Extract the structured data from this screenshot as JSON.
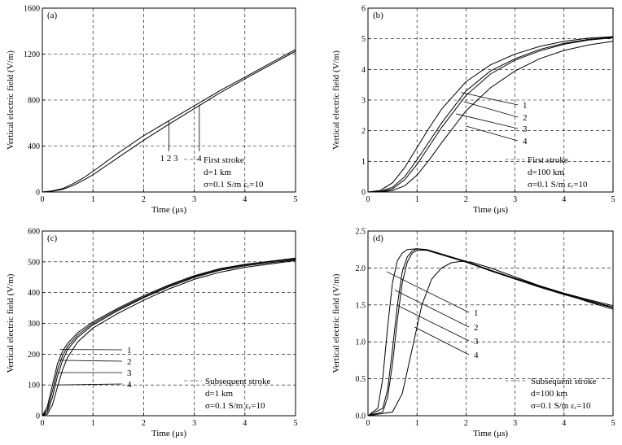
{
  "chart_data": [
    {
      "type": "line",
      "panel_label": "(a)",
      "xlabel": "Time (μs)",
      "ylabel": "Vertical electric field (V/m)",
      "xlim": [
        0,
        5
      ],
      "ylim": [
        0,
        1600
      ],
      "xticks": [
        "0",
        "1",
        "2",
        "3",
        "4",
        "5"
      ],
      "yticks": [
        "0",
        "400",
        "800",
        "1200",
        "1600"
      ],
      "grid": true,
      "annotation_lines": [
        "First stroke",
        "d=1 km",
        "σ=0.1 S/m εᵣ=10"
      ],
      "curve_labels": [
        "1 2 3",
        "4"
      ],
      "series": [
        {
          "x": [
            0,
            0.2,
            0.4,
            0.6,
            0.8,
            1,
            1.5,
            2,
            2.5,
            3,
            3.5,
            4,
            4.5,
            5
          ],
          "values": [
            0,
            10,
            30,
            70,
            120,
            180,
            340,
            490,
            620,
            750,
            880,
            1000,
            1120,
            1240
          ]
        },
        {
          "x": [
            0,
            0.2,
            0.4,
            0.6,
            0.8,
            1,
            1.5,
            2,
            2.5,
            3,
            3.5,
            4,
            4.5,
            5
          ],
          "values": [
            0,
            7,
            22,
            55,
            100,
            150,
            300,
            450,
            590,
            725,
            860,
            985,
            1105,
            1225
          ]
        }
      ]
    },
    {
      "type": "line",
      "panel_label": "(b)",
      "xlabel": "Time (μs)",
      "ylabel": "Vertical electric field (V/m)",
      "xlim": [
        0,
        5
      ],
      "ylim": [
        0,
        6
      ],
      "xticks": [
        "0",
        "1",
        "2",
        "3",
        "4",
        "5"
      ],
      "yticks": [
        "0",
        "1",
        "2",
        "3",
        "4",
        "5",
        "6"
      ],
      "grid": true,
      "annotation_lines": [
        "First stroke",
        "d=100 km",
        "σ=0.1 S/m εᵣ=10"
      ],
      "curve_labels": [
        "1",
        "2",
        "3",
        "4"
      ],
      "series": [
        {
          "x": [
            0,
            0.25,
            0.5,
            0.75,
            1,
            1.25,
            1.5,
            2,
            2.5,
            3,
            3.5,
            4,
            4.5,
            5
          ],
          "values": [
            0,
            0.05,
            0.3,
            0.8,
            1.45,
            2.1,
            2.7,
            3.6,
            4.15,
            4.5,
            4.75,
            4.92,
            5.02,
            5.07
          ]
        },
        {
          "x": [
            0,
            0.25,
            0.5,
            0.75,
            1,
            1.25,
            1.5,
            2,
            2.5,
            3,
            3.5,
            4,
            4.5,
            5
          ],
          "values": [
            0,
            0.02,
            0.15,
            0.5,
            1.05,
            1.65,
            2.25,
            3.3,
            3.95,
            4.35,
            4.65,
            4.85,
            4.98,
            5.05
          ]
        },
        {
          "x": [
            0,
            0.25,
            0.5,
            0.75,
            1,
            1.25,
            1.5,
            2,
            2.5,
            3,
            3.5,
            4,
            4.5,
            5
          ],
          "values": [
            0,
            0.01,
            0.1,
            0.4,
            0.9,
            1.5,
            2.1,
            3.15,
            3.85,
            4.3,
            4.6,
            4.82,
            4.96,
            5.03
          ]
        },
        {
          "x": [
            0,
            0.25,
            0.5,
            0.75,
            1,
            1.25,
            1.5,
            2,
            2.5,
            3,
            3.5,
            4,
            4.5,
            5
          ],
          "values": [
            0,
            0.0,
            0.05,
            0.2,
            0.55,
            1.05,
            1.6,
            2.65,
            3.4,
            3.95,
            4.35,
            4.62,
            4.8,
            4.92
          ]
        }
      ]
    },
    {
      "type": "line",
      "panel_label": "(c)",
      "xlabel": "Time (μs)",
      "ylabel": "Vertical electric field (V/m)",
      "xlim": [
        0,
        5
      ],
      "ylim": [
        0,
        600
      ],
      "xticks": [
        "0",
        "1",
        "2",
        "3",
        "4",
        "5"
      ],
      "yticks": [
        "0",
        "100",
        "200",
        "300",
        "400",
        "500",
        "600"
      ],
      "grid": true,
      "annotation_lines": [
        "Subsequent stroke",
        "d=1 km",
        "σ=0.1 S/m εᵣ=10"
      ],
      "curve_labels": [
        "1",
        "2",
        "3",
        "4"
      ],
      "series": [
        {
          "x": [
            0,
            0.1,
            0.2,
            0.3,
            0.4,
            0.5,
            0.7,
            1,
            1.5,
            2,
            2.5,
            3,
            3.5,
            4,
            4.5,
            5
          ],
          "values": [
            0,
            30,
            100,
            170,
            210,
            235,
            270,
            305,
            350,
            390,
            425,
            455,
            478,
            492,
            502,
            512
          ]
        },
        {
          "x": [
            0,
            0.1,
            0.2,
            0.3,
            0.4,
            0.5,
            0.7,
            1,
            1.5,
            2,
            2.5,
            3,
            3.5,
            4,
            4.5,
            5
          ],
          "values": [
            0,
            20,
            80,
            150,
            195,
            225,
            262,
            300,
            346,
            386,
            422,
            452,
            475,
            490,
            500,
            510
          ]
        },
        {
          "x": [
            0,
            0.1,
            0.2,
            0.3,
            0.4,
            0.5,
            0.7,
            1,
            1.5,
            2,
            2.5,
            3,
            3.5,
            4,
            4.5,
            5
          ],
          "values": [
            0,
            12,
            60,
            130,
            180,
            215,
            255,
            295,
            342,
            383,
            419,
            449,
            472,
            487,
            497,
            507
          ]
        },
        {
          "x": [
            0,
            0.1,
            0.2,
            0.3,
            0.4,
            0.5,
            0.7,
            1,
            1.5,
            2,
            2.5,
            3,
            3.5,
            4,
            4.5,
            5
          ],
          "values": [
            0,
            5,
            35,
            95,
            150,
            190,
            240,
            285,
            333,
            375,
            412,
            443,
            466,
            482,
            493,
            504
          ]
        }
      ]
    },
    {
      "type": "line",
      "panel_label": "(d)",
      "xlabel": "Time (μs)",
      "ylabel": "Vertical electric field (V/m)",
      "xlim": [
        0,
        5
      ],
      "ylim": [
        0,
        2.5
      ],
      "xticks": [
        "0",
        "1",
        "2",
        "3",
        "4",
        "5"
      ],
      "yticks": [
        "0.0",
        "0.5",
        "1.0",
        "1.5",
        "2.0",
        "2.5"
      ],
      "grid": true,
      "annotation_lines": [
        "Subsequent stroke",
        "d=100 km",
        "σ=0.1 S/m εᵣ=10"
      ],
      "curve_labels": [
        "1",
        "2",
        "3",
        "4"
      ],
      "series": [
        {
          "x": [
            0,
            0.2,
            0.3,
            0.4,
            0.5,
            0.6,
            0.7,
            0.8,
            1,
            1.2,
            1.5,
            2,
            2.5,
            3,
            3.5,
            4,
            4.5,
            5
          ],
          "values": [
            0,
            0.1,
            0.5,
            1.2,
            1.8,
            2.1,
            2.2,
            2.25,
            2.26,
            2.24,
            2.18,
            2.08,
            1.97,
            1.86,
            1.76,
            1.66,
            1.57,
            1.49
          ]
        },
        {
          "x": [
            0,
            0.3,
            0.4,
            0.5,
            0.6,
            0.7,
            0.8,
            0.9,
            1,
            1.2,
            1.5,
            2,
            2.5,
            3,
            3.5,
            4,
            4.5,
            5
          ],
          "values": [
            0,
            0.1,
            0.35,
            0.9,
            1.5,
            1.95,
            2.15,
            2.23,
            2.26,
            2.25,
            2.19,
            2.09,
            1.97,
            1.86,
            1.75,
            1.65,
            1.56,
            1.47
          ]
        },
        {
          "x": [
            0,
            0.3,
            0.4,
            0.5,
            0.6,
            0.7,
            0.8,
            0.9,
            1,
            1.2,
            1.5,
            2,
            2.5,
            3,
            3.5,
            4,
            4.5,
            5
          ],
          "values": [
            0,
            0.05,
            0.25,
            0.7,
            1.3,
            1.8,
            2.08,
            2.2,
            2.24,
            2.24,
            2.18,
            2.08,
            1.96,
            1.85,
            1.74,
            1.64,
            1.55,
            1.46
          ]
        },
        {
          "x": [
            0,
            0.5,
            0.7,
            0.9,
            1.1,
            1.3,
            1.5,
            1.7,
            1.9,
            2.1,
            2.5,
            3,
            3.5,
            4,
            4.5,
            5
          ],
          "values": [
            0,
            0.05,
            0.3,
            0.9,
            1.5,
            1.85,
            2.0,
            2.07,
            2.09,
            2.08,
            2.0,
            1.88,
            1.76,
            1.65,
            1.54,
            1.44
          ]
        }
      ]
    }
  ]
}
